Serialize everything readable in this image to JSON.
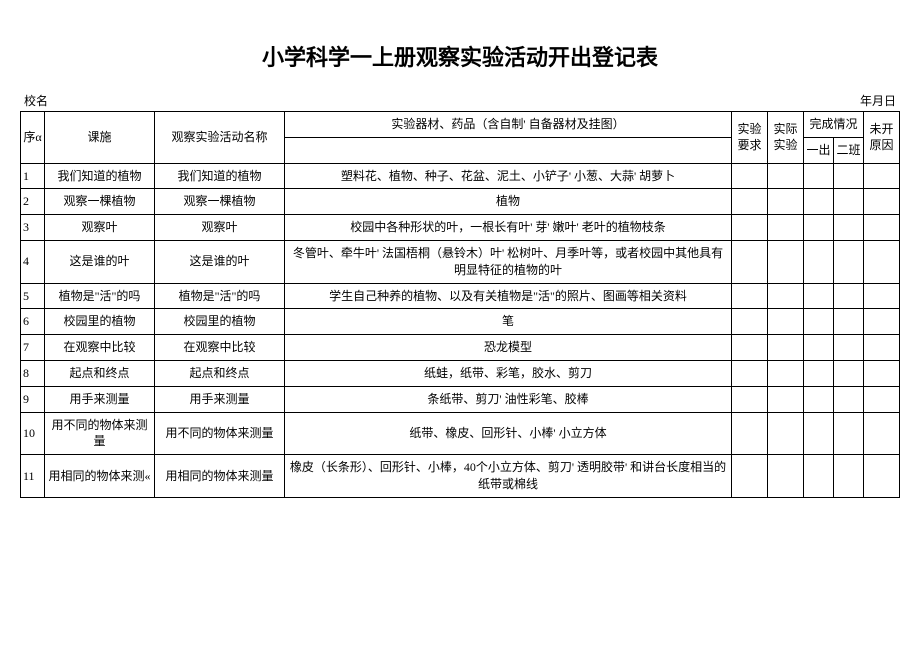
{
  "title": "小学科学一上册观察实验活动开出登记表",
  "meta": {
    "school_label": "校名",
    "date_label": "年月日"
  },
  "headers": {
    "seq": "序α",
    "course": "课施",
    "exp_name": "观察实验活动名称",
    "materials": "实验器材、药品（含自制' 自备器材及挂图）",
    "req": "实验要求",
    "actual": "实际实验",
    "completion": "完成情况",
    "class1": "一出",
    "class2": "二班",
    "reason": "未开原因"
  },
  "rows": [
    {
      "seq": "1",
      "course": "我们知道的植物",
      "exp": "我们知道的植物",
      "materials": "塑料花、植物、种子、花盆、泥土、小铲子' 小葱、大蒜' 胡萝卜"
    },
    {
      "seq": "2",
      "course": "观察一棵植物",
      "exp": "观察一棵植物",
      "materials": "植物"
    },
    {
      "seq": "3",
      "course": "观察叶",
      "exp": "观察叶",
      "materials": "校园中各种形状的叶，一根长有叶' 芽' 嫩叶' 老叶的植物枝条"
    },
    {
      "seq": "4",
      "course": "这是谁的叶",
      "exp": "这是谁的叶",
      "materials": "冬管叶、牵牛叶' 法国梧桐（悬铃木）叶' 松树叶、月季叶等，或者校园中其他具有明显特征的植物的叶"
    },
    {
      "seq": "5",
      "course": "植物是\"活\"的吗",
      "exp": "植物是\"活\"的吗",
      "materials": "学生自己种养的植物、以及有关植物是\"活\"的照片、图画等相关资料"
    },
    {
      "seq": "6",
      "course": "校园里的植物",
      "exp": "校园里的植物",
      "materials": "笔"
    },
    {
      "seq": "7",
      "course": "在观察中比较",
      "exp": "在观察中比较",
      "materials": "恐龙模型"
    },
    {
      "seq": "8",
      "course": "起点和终点",
      "exp": "起点和终点",
      "materials": "纸蛙，纸带、彩笔，胶水、剪刀"
    },
    {
      "seq": "9",
      "course": "用手来测量",
      "exp": "用手来测量",
      "materials": "条纸带、剪刀' 油性彩笔、胶棒"
    },
    {
      "seq": "10",
      "course": "用不同的物体来测量",
      "exp": "用不同的物体来测量",
      "materials": "纸带、橡皮、回形针、小棒' 小立方体"
    },
    {
      "seq": "11",
      "course": "用相同的物体来测«",
      "exp": "用相同的物体来测量",
      "materials": "橡皮（长条形）、回形针、小棒，40个小立方体、剪刀' 透明胶带' 和讲台长度相当的纸带或棉线"
    }
  ]
}
